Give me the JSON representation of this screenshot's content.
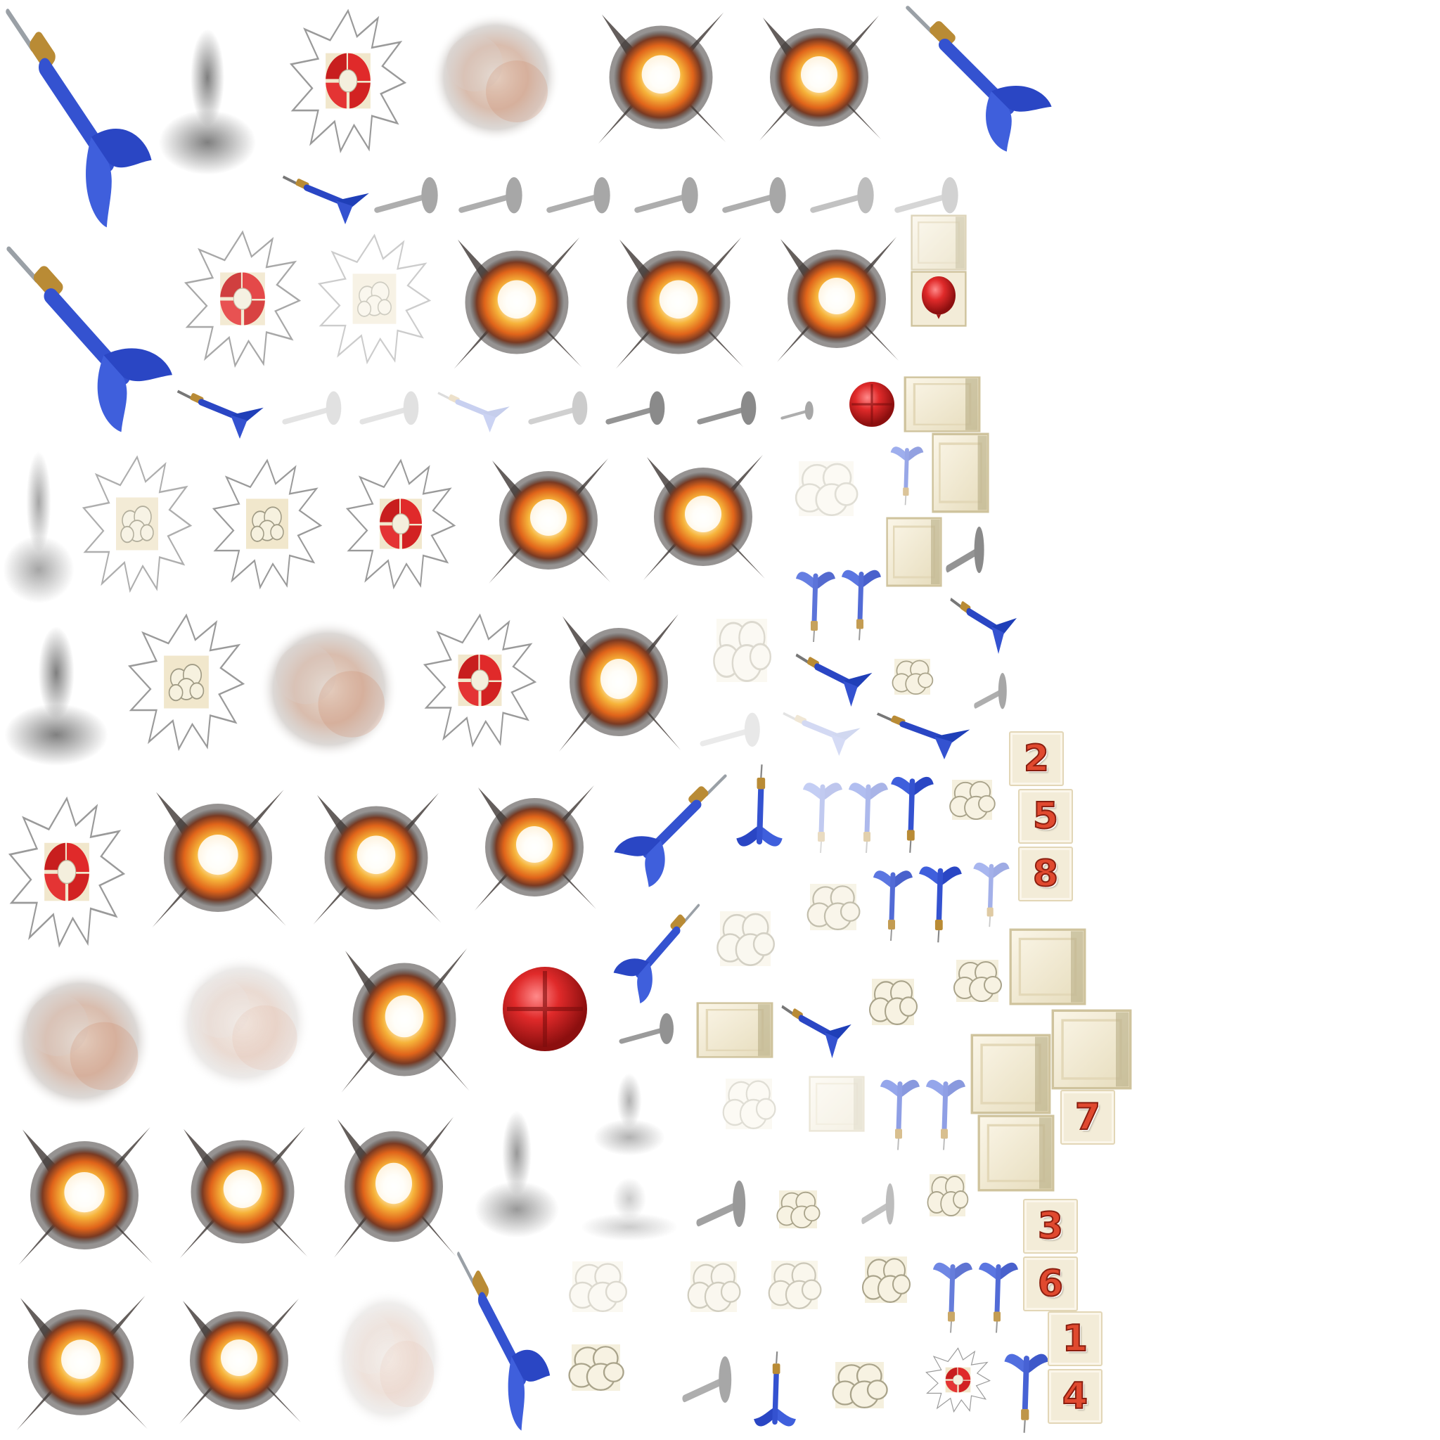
{
  "sheet": {
    "palette": {
      "dart_blue": "#1f3fb8",
      "dart_blue_light": "#4f78e8",
      "dart_blue_faded": "#aebcf0",
      "dart_brass": "#b98b35",
      "dart_shadow": "#6e6e6e",
      "balloon_red": "#e02a2a",
      "tile_cream": "#f3ecd8",
      "tile_border": "#cfc39d",
      "explosion_core": "#fff7d6",
      "explosion_orange": "#f08a1c",
      "explosion_red": "#c83a12",
      "smoke_gray": "#3b3b3b",
      "popcorn_cream": "#efe8c8",
      "number_red": "#e0492f"
    },
    "number_tiles": [
      {
        "label": "2"
      },
      {
        "label": "5"
      },
      {
        "label": "8"
      },
      {
        "label": "7"
      },
      {
        "label": "3"
      },
      {
        "label": "6"
      },
      {
        "label": "1"
      },
      {
        "label": "4"
      }
    ]
  }
}
